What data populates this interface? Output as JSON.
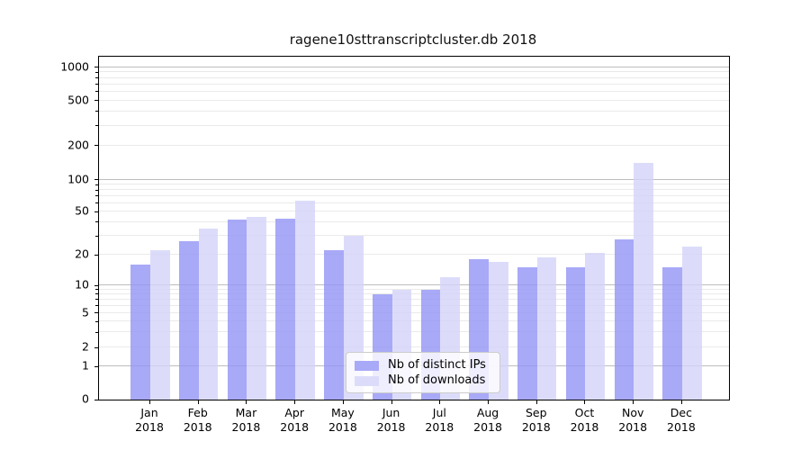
{
  "title": "ragene10sttranscriptcluster.db 2018",
  "chart_data": {
    "type": "bar",
    "title": "ragene10sttranscriptcluster.db 2018",
    "categories": [
      "Jan",
      "Feb",
      "Mar",
      "Apr",
      "May",
      "Jun",
      "Jul",
      "Aug",
      "Sep",
      "Oct",
      "Nov",
      "Dec"
    ],
    "category_year": "2018",
    "series": [
      {
        "name": "Nb of distinct IPs",
        "color": "#a8a9f7",
        "values": [
          16,
          27,
          42,
          43,
          22,
          8,
          9,
          18,
          15,
          15,
          28,
          15
        ]
      },
      {
        "name": "Nb of downloads",
        "color": "#dcdcfa",
        "values": [
          22,
          35,
          45,
          63,
          30,
          9,
          12,
          17,
          19,
          21,
          140,
          24
        ]
      }
    ],
    "xlabel": "",
    "ylabel": "",
    "yscale": "symlog",
    "yticks": [
      0,
      1,
      2,
      5,
      10,
      20,
      50,
      100,
      200,
      500,
      1000
    ],
    "ylim": [
      0,
      1250
    ],
    "grid": "horizontal, major and minor",
    "legend_position": "lower center inside plot"
  },
  "legend": {
    "items": [
      {
        "label": "Nb of distinct IPs"
      },
      {
        "label": "Nb of downloads"
      }
    ]
  },
  "colors": {
    "bar_ips": "#a8a9f7",
    "bar_ips_rgba": "rgba(146,147,245,0.8)",
    "bar_downloads": "#dcdcfa",
    "bar_downloads_rgba": "rgba(211,211,249,0.8)",
    "grid_major": "#bdbdbd",
    "grid_minor": "#eaeaea",
    "spine": "#000000",
    "legend_border": "#cccccc"
  }
}
